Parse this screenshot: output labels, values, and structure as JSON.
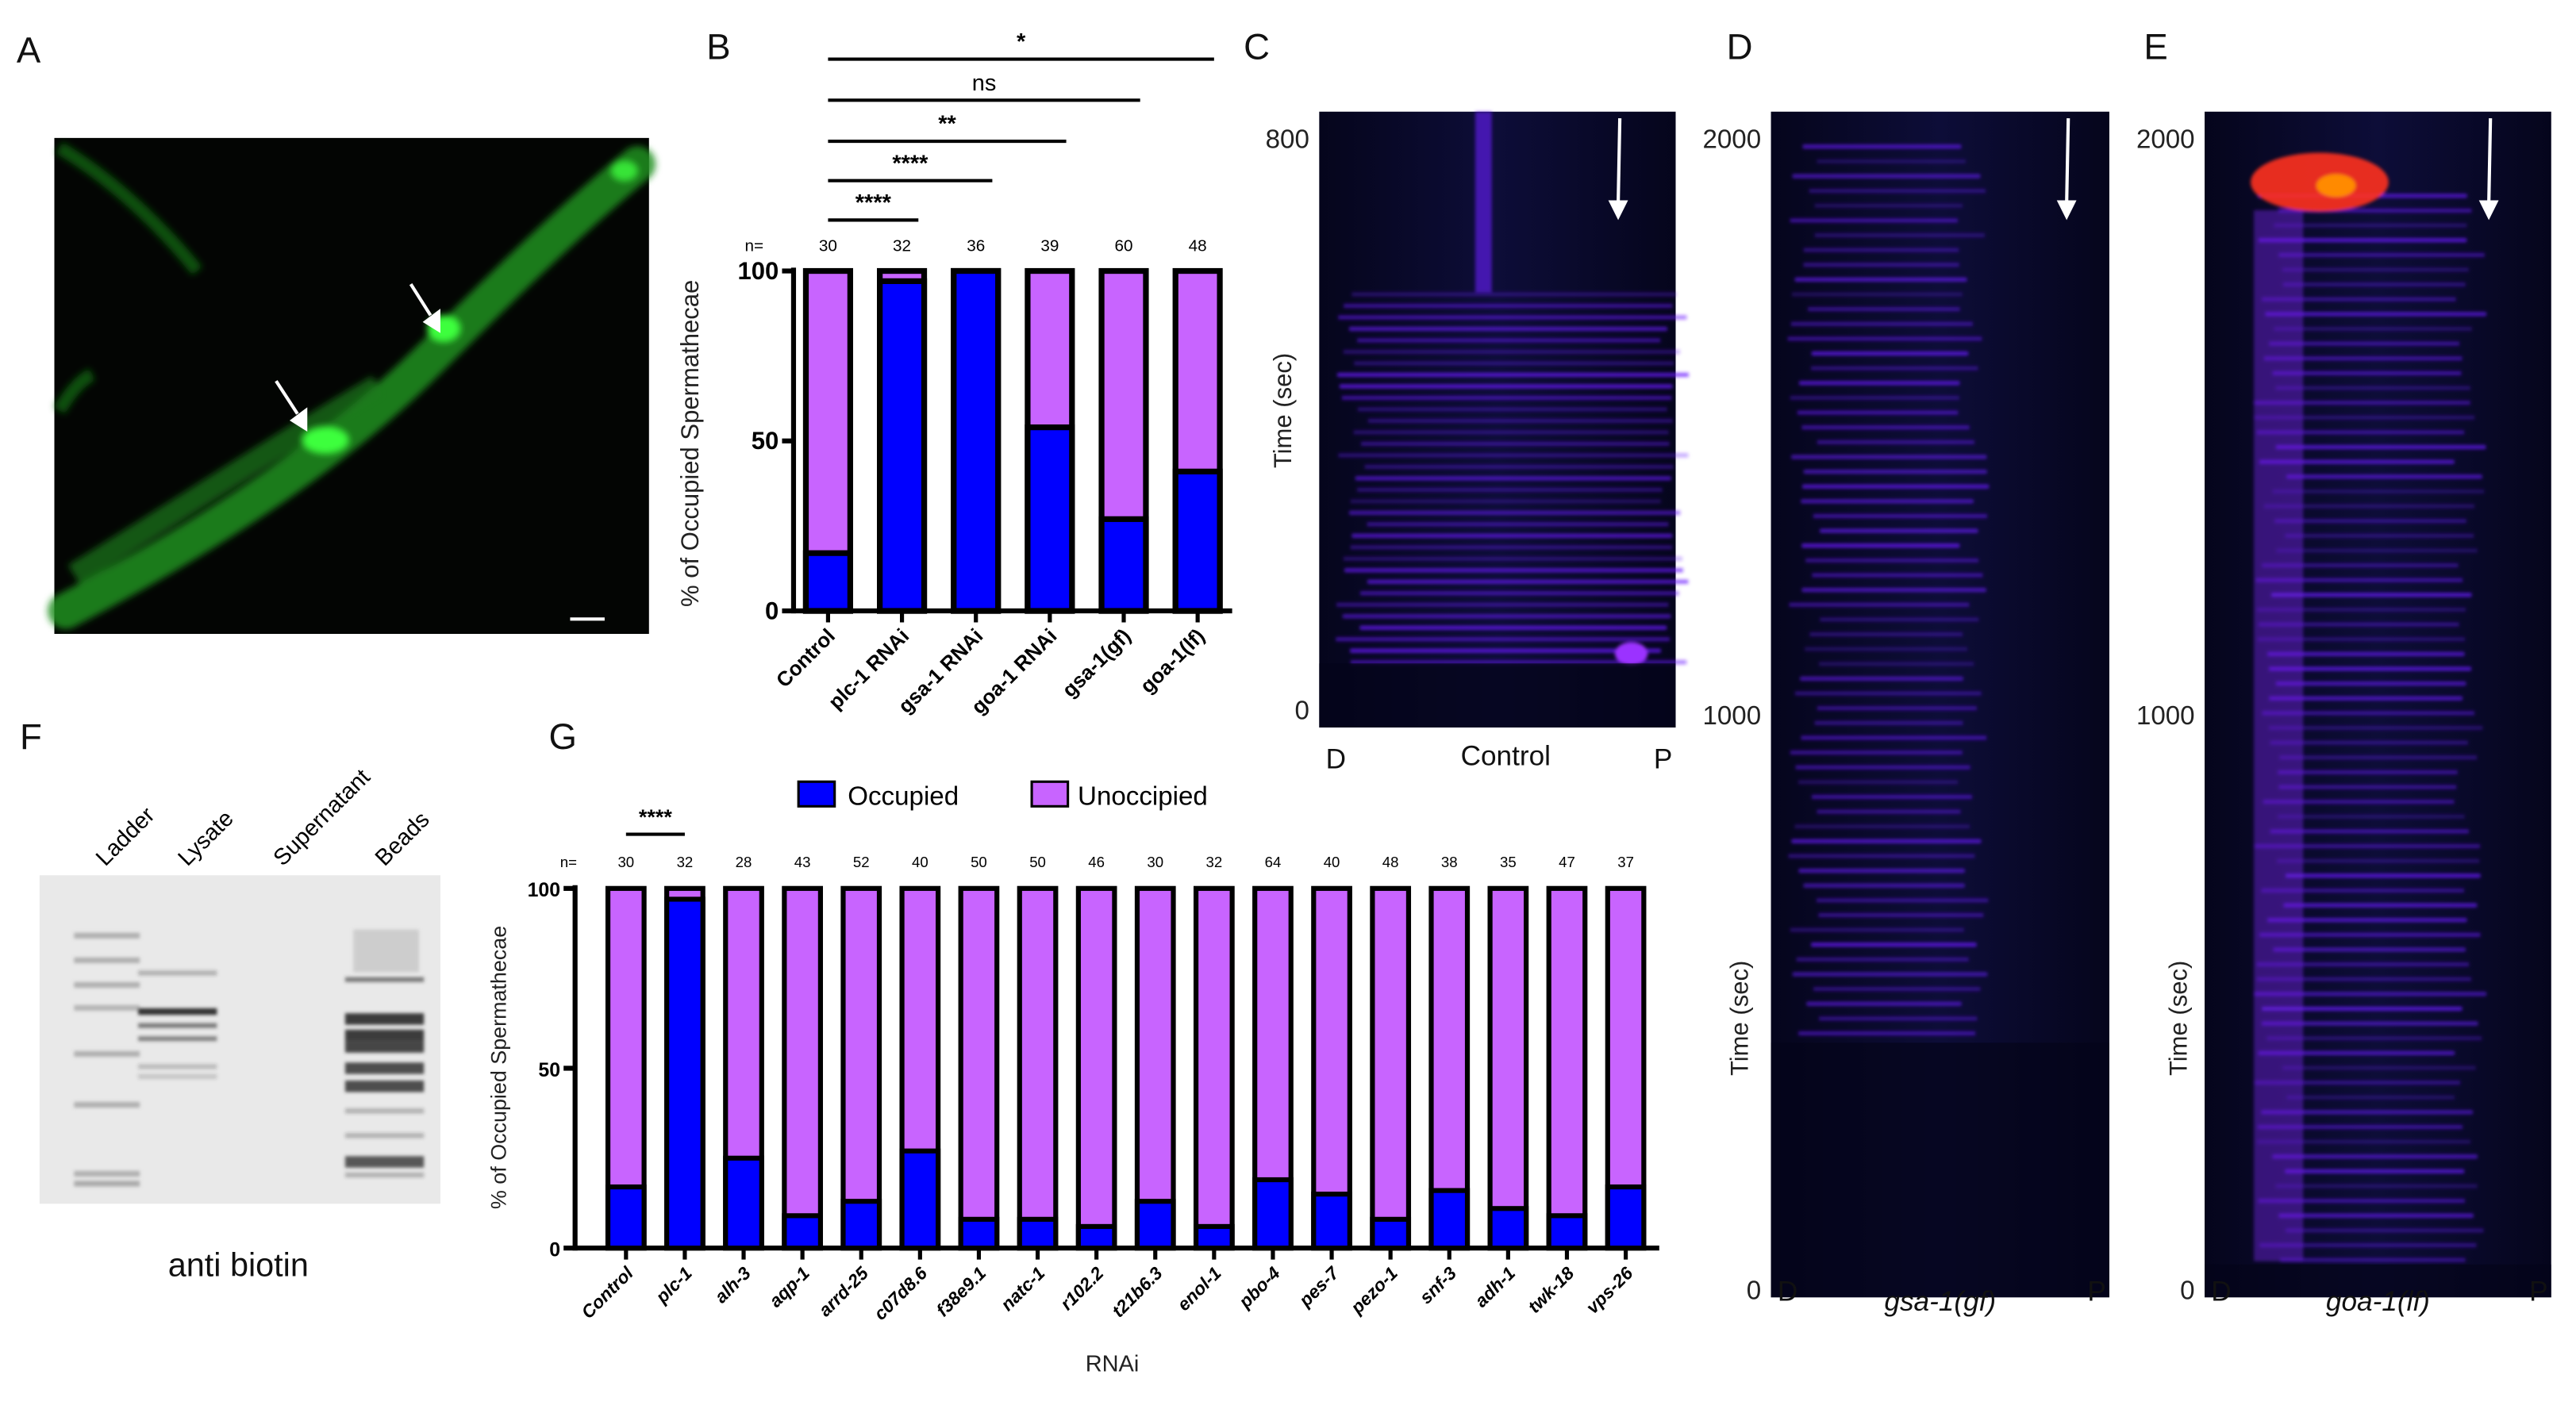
{
  "panels": {
    "A": "A",
    "B": "B",
    "C": "C",
    "D": "D",
    "E": "E",
    "F": "F",
    "G": "G"
  },
  "colors": {
    "occupied": "#0000ff",
    "unoccupied": "#c864ff",
    "micrograph_signal": "#22dd22",
    "kymograph_bg": "#0a0a2e",
    "kymograph_signal": "#6a1aff",
    "kymograph_hot": "#ff3020"
  },
  "panel_a": {
    "type": "fluorescence micrograph",
    "arrows": 2,
    "scale_bar": true
  },
  "kymographs": [
    {
      "panel": "C",
      "ylabel": "Time (sec)",
      "ticks": [
        "800",
        "0"
      ],
      "left": "D",
      "right": "P",
      "title": "Control",
      "title_italic": false
    },
    {
      "panel": "D",
      "ylabel": "Time (sec)",
      "ticks": [
        "2000",
        "1000",
        "0"
      ],
      "left": "D",
      "right": "P",
      "title": "gsa-1(gf)",
      "title_italic": true
    },
    {
      "panel": "E",
      "ylabel": "Time (sec)",
      "ticks": [
        "2000",
        "1000",
        "0"
      ],
      "left": "D",
      "right": "P",
      "title": "goa-1(lf)",
      "title_italic": true
    }
  ],
  "blot": {
    "lanes": [
      "Ladder",
      "Lysate",
      "Supernatant",
      "Beads"
    ],
    "caption": "anti biotin"
  },
  "chart_data": [
    {
      "panel": "B",
      "type": "bar",
      "stacked": true,
      "ylabel": "% of Occupied Spermathecae",
      "xlabel": "",
      "ylim": [
        0,
        100
      ],
      "yticks": [
        "0",
        "50",
        "100"
      ],
      "n_label": "n=",
      "categories": [
        "Control",
        "plc-1 RNAi",
        "gsa-1 RNAi",
        "goa-1 RNAi",
        "gsa-1(gf)",
        "goa-1(lf)"
      ],
      "n": [
        "30",
        "32",
        "36",
        "39",
        "60",
        "48"
      ],
      "series": [
        {
          "name": "Occupied",
          "values": [
            17,
            97,
            100,
            54,
            27,
            41
          ]
        },
        {
          "name": "Unoccupied",
          "values": [
            83,
            3,
            0,
            46,
            73,
            59
          ]
        }
      ],
      "comparisons": [
        {
          "from": "Control",
          "to": "goa-1(lf)",
          "label": "*"
        },
        {
          "from": "Control",
          "to": "gsa-1(gf)",
          "label": "ns"
        },
        {
          "from": "Control",
          "to": "goa-1 RNAi",
          "label": "**"
        },
        {
          "from": "Control",
          "to": "gsa-1 RNAi",
          "label": "****"
        },
        {
          "from": "Control",
          "to": "plc-1 RNAi",
          "label": "****"
        }
      ],
      "grid": false
    },
    {
      "panel": "G",
      "type": "bar",
      "stacked": true,
      "ylabel": "% of Occupied Spermathecae",
      "xlabel": "RNAi",
      "ylim": [
        0,
        100
      ],
      "yticks": [
        "0",
        "50",
        "100"
      ],
      "n_label": "n=",
      "legend": {
        "placement": "top",
        "entries": [
          "Occupied",
          "Unoccipied"
        ]
      },
      "categories": [
        "Control",
        "plc-1",
        "alh-3",
        "aqp-1",
        "arrd-25",
        "c07d8.6",
        "f38e9.1",
        "natc-1",
        "r102.2",
        "t21b6.3",
        "enol-1",
        "pbo-4",
        "pes-7",
        "pezo-1",
        "snf-3",
        "adh-1",
        "twk-18",
        "vps-26"
      ],
      "n": [
        "30",
        "32",
        "28",
        "43",
        "52",
        "40",
        "50",
        "50",
        "46",
        "30",
        "32",
        "64",
        "40",
        "48",
        "38",
        "35",
        "47",
        "37"
      ],
      "series": [
        {
          "name": "Occupied",
          "values": [
            17,
            97,
            25,
            9,
            13,
            27,
            8,
            8,
            6,
            13,
            6,
            19,
            15,
            8,
            16,
            11,
            9,
            17
          ]
        },
        {
          "name": "Unoccupied",
          "values": [
            83,
            3,
            75,
            91,
            87,
            73,
            92,
            92,
            94,
            87,
            94,
            81,
            85,
            92,
            84,
            89,
            91,
            83
          ]
        }
      ],
      "comparisons": [
        {
          "from": "Control",
          "to": "plc-1",
          "label": "****"
        }
      ],
      "grid": false
    }
  ]
}
